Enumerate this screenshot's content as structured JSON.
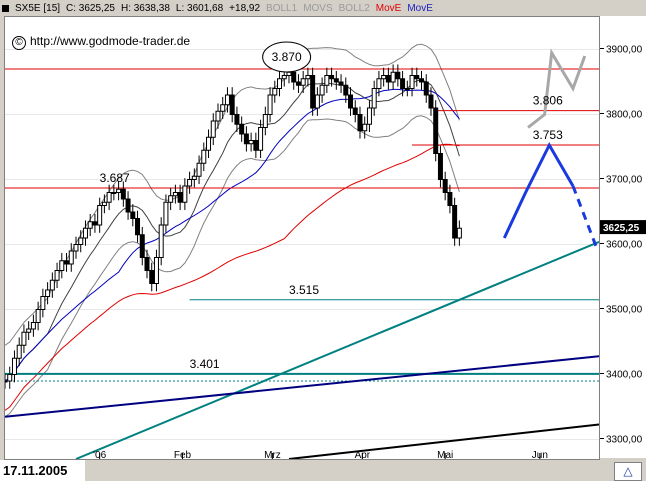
{
  "header": {
    "symbol": "SX5E [15]",
    "close": "C: 3625,25",
    "high": "H: 3638,38",
    "low": "L: 3601,68",
    "change": "+18,92",
    "boll1": "BOLL1",
    "movs": "MOVS",
    "boll2": "BOLL2",
    "move_red": "MovE",
    "move_blue": "MovE"
  },
  "watermark": {
    "symbol": "©",
    "text": "http://www.godmode-trader.de"
  },
  "footer": {
    "date": "17.11.2005"
  },
  "colors": {
    "candle": "#000000",
    "resistance": "#e00000",
    "support_green": "#008080",
    "trend_blue": "#000080",
    "bands": "#808080",
    "ma_blue": "#0000c0",
    "ma_red": "#e00000",
    "projection_blue": "#1a3ae0",
    "projection_grey": "#a8a8a8"
  },
  "chart_data": {
    "type": "line",
    "x_tick_labels": [
      "'06",
      "Feb",
      "Mrz",
      "Apr",
      "Mai",
      "Jun"
    ],
    "x_ticks_day": [
      40,
      75,
      113,
      151,
      186,
      226
    ],
    "y_tick_values": [
      3300,
      3400,
      3500,
      3600,
      3700,
      3800,
      3900
    ],
    "y_tick_labels": [
      "3300,00",
      "3400,00",
      "3500,00",
      "3600,00",
      "3700,00",
      "3800,00",
      "3900,00"
    ],
    "ylim": [
      3270,
      3950
    ],
    "xlim": [
      0,
      251
    ],
    "last_price_label": "3625,25",
    "last_price": 3625.25,
    "price_close": [
      [
        0,
        3390
      ],
      [
        2,
        3400
      ],
      [
        4,
        3425
      ],
      [
        6,
        3445
      ],
      [
        8,
        3465
      ],
      [
        10,
        3470
      ],
      [
        12,
        3480
      ],
      [
        14,
        3500
      ],
      [
        16,
        3520
      ],
      [
        18,
        3530
      ],
      [
        20,
        3545
      ],
      [
        22,
        3560
      ],
      [
        24,
        3575
      ],
      [
        26,
        3570
      ],
      [
        28,
        3590
      ],
      [
        30,
        3600
      ],
      [
        32,
        3610
      ],
      [
        34,
        3625
      ],
      [
        36,
        3635
      ],
      [
        38,
        3630
      ],
      [
        40,
        3660
      ],
      [
        42,
        3665
      ],
      [
        44,
        3680
      ],
      [
        46,
        3680
      ],
      [
        48,
        3685
      ],
      [
        50,
        3670
      ],
      [
        52,
        3650
      ],
      [
        54,
        3640
      ],
      [
        56,
        3615
      ],
      [
        58,
        3580
      ],
      [
        60,
        3560
      ],
      [
        62,
        3540
      ],
      [
        64,
        3580
      ],
      [
        66,
        3630
      ],
      [
        68,
        3665
      ],
      [
        70,
        3675
      ],
      [
        72,
        3680
      ],
      [
        74,
        3665
      ],
      [
        76,
        3690
      ],
      [
        78,
        3700
      ],
      [
        80,
        3705
      ],
      [
        82,
        3725
      ],
      [
        84,
        3745
      ],
      [
        86,
        3765
      ],
      [
        88,
        3790
      ],
      [
        90,
        3805
      ],
      [
        92,
        3815
      ],
      [
        94,
        3830
      ],
      [
        96,
        3800
      ],
      [
        98,
        3785
      ],
      [
        100,
        3770
      ],
      [
        102,
        3755
      ],
      [
        104,
        3760
      ],
      [
        106,
        3745
      ],
      [
        108,
        3780
      ],
      [
        110,
        3800
      ],
      [
        112,
        3830
      ],
      [
        114,
        3840
      ],
      [
        116,
        3855
      ],
      [
        118,
        3860
      ],
      [
        120,
        3865
      ],
      [
        122,
        3850
      ],
      [
        124,
        3845
      ],
      [
        126,
        3855
      ],
      [
        128,
        3860
      ],
      [
        130,
        3810
      ],
      [
        132,
        3830
      ],
      [
        134,
        3845
      ],
      [
        136,
        3860
      ],
      [
        138,
        3855
      ],
      [
        140,
        3850
      ],
      [
        142,
        3845
      ],
      [
        144,
        3830
      ],
      [
        146,
        3810
      ],
      [
        148,
        3800
      ],
      [
        150,
        3775
      ],
      [
        152,
        3785
      ],
      [
        154,
        3810
      ],
      [
        156,
        3840
      ],
      [
        158,
        3855
      ],
      [
        160,
        3860
      ],
      [
        162,
        3850
      ],
      [
        164,
        3865
      ],
      [
        166,
        3855
      ],
      [
        168,
        3840
      ],
      [
        170,
        3840
      ],
      [
        172,
        3860
      ],
      [
        174,
        3855
      ],
      [
        176,
        3850
      ],
      [
        178,
        3830
      ],
      [
        180,
        3810
      ],
      [
        182,
        3740
      ],
      [
        184,
        3700
      ],
      [
        186,
        3680
      ],
      [
        188,
        3660
      ],
      [
        190,
        3610
      ],
      [
        192,
        3625
      ]
    ],
    "resistance_lines": [
      {
        "label": "3.870",
        "y": 3870,
        "x": [
          0,
          251
        ]
      },
      {
        "label": "3.806",
        "y": 3806,
        "x": [
          181,
          251
        ]
      },
      {
        "label": "3.753",
        "y": 3753,
        "x": [
          172,
          251
        ]
      },
      {
        "label": "3.687",
        "y": 3687,
        "x": [
          0,
          251
        ]
      },
      {
        "label": "3.515",
        "y": 3515,
        "x": [
          78,
          251
        ]
      },
      {
        "label": "3.401",
        "y": 3401,
        "x": [
          0,
          251
        ]
      }
    ],
    "support_line_dotted": {
      "y": 3390,
      "x": [
        0,
        251
      ]
    },
    "trend_lines": [
      {
        "name": "green-trend",
        "points": [
          [
            30,
            3270
          ],
          [
            251,
            3604
          ]
        ]
      },
      {
        "name": "blue-trend",
        "points": [
          [
            0,
            3335
          ],
          [
            251,
            3428
          ]
        ]
      },
      {
        "name": "black-trend",
        "points": [
          [
            120,
            3270
          ],
          [
            251,
            3323
          ]
        ]
      }
    ],
    "projection_blue": [
      [
        211,
        3610
      ],
      [
        220,
        3680
      ],
      [
        230,
        3753
      ],
      [
        240,
        3690
      ],
      [
        250,
        3595
      ]
    ],
    "projection_grey": [
      [
        221,
        3780
      ],
      [
        228,
        3800
      ],
      [
        231,
        3895
      ],
      [
        240,
        3840
      ],
      [
        245,
        3890
      ]
    ]
  }
}
